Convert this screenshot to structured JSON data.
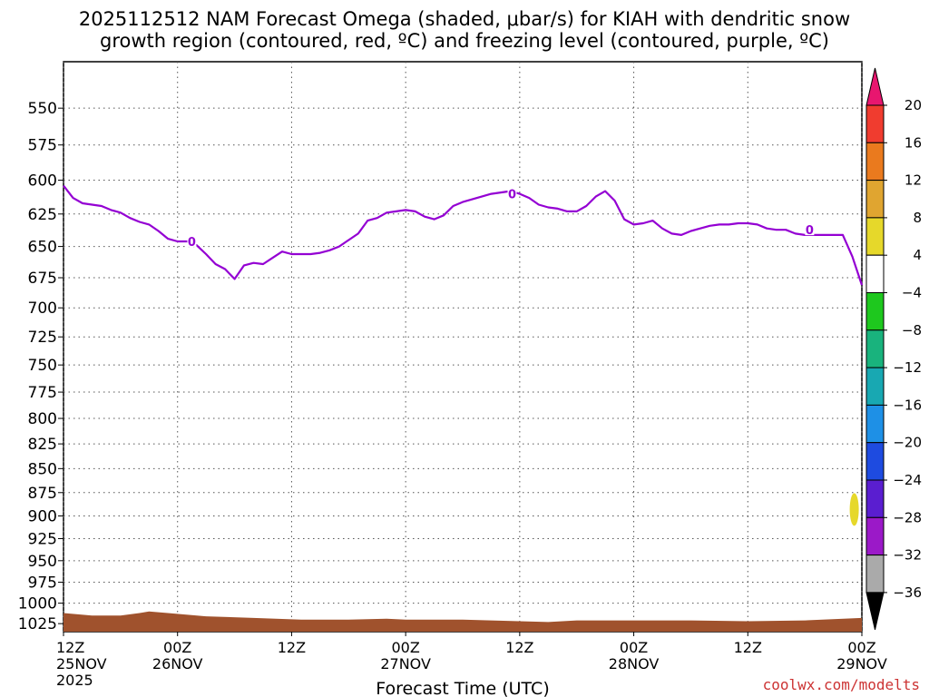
{
  "title": {
    "line1": "2025112512 NAM Forecast Omega (shaded, μbar/s) for KIAH with dendritic snow",
    "line2": "growth region (contoured, red, ºC) and freezing level (contoured, purple, ºC)"
  },
  "credit": "coolwx.com/modelts",
  "colors": {
    "freezing_level": "#9400d3",
    "terrain": "#a0522d",
    "grid": "#555555",
    "omega_positive_blob": "#e6d82a"
  },
  "chart_data": {
    "type": "time-height",
    "xlabel": "Forecast Time (UTC)",
    "x_ticks": [
      {
        "hour": 0,
        "label": "12Z",
        "sub": "25NOV",
        "sub2": "2025"
      },
      {
        "hour": 12,
        "label": "00Z",
        "sub": "26NOV",
        "sub2": ""
      },
      {
        "hour": 24,
        "label": "12Z",
        "sub": "",
        "sub2": ""
      },
      {
        "hour": 36,
        "label": "00Z",
        "sub": "27NOV",
        "sub2": ""
      },
      {
        "hour": 48,
        "label": "12Z",
        "sub": "",
        "sub2": ""
      },
      {
        "hour": 60,
        "label": "00Z",
        "sub": "28NOV",
        "sub2": ""
      },
      {
        "hour": 72,
        "label": "12Z",
        "sub": "",
        "sub2": ""
      },
      {
        "hour": 84,
        "label": "00Z",
        "sub": "29NOV",
        "sub2": ""
      }
    ],
    "xlim": [
      0,
      84
    ],
    "y_ticks": [
      550,
      575,
      600,
      625,
      650,
      675,
      700,
      725,
      750,
      775,
      800,
      825,
      850,
      875,
      900,
      925,
      950,
      975,
      1000,
      1025
    ],
    "ylim_hpa": [
      1035,
      520
    ],
    "y_scale": "log-pressure",
    "grid": true,
    "freezing_level_label": "0",
    "freezing_level_hpa": [
      [
        0,
        604
      ],
      [
        1,
        613
      ],
      [
        2,
        617
      ],
      [
        3,
        618
      ],
      [
        4,
        619
      ],
      [
        5,
        622
      ],
      [
        6,
        624
      ],
      [
        7,
        628
      ],
      [
        8,
        631
      ],
      [
        9,
        633
      ],
      [
        10,
        638
      ],
      [
        11,
        644
      ],
      [
        12,
        646
      ],
      [
        13,
        646
      ],
      [
        14,
        649
      ],
      [
        15,
        656
      ],
      [
        16,
        664
      ],
      [
        17,
        668
      ],
      [
        18,
        676
      ],
      [
        19,
        665
      ],
      [
        20,
        663
      ],
      [
        21,
        664
      ],
      [
        22,
        659
      ],
      [
        23,
        654
      ],
      [
        24,
        656
      ],
      [
        25,
        656
      ],
      [
        26,
        656
      ],
      [
        27,
        655
      ],
      [
        28,
        653
      ],
      [
        29,
        650
      ],
      [
        30,
        645
      ],
      [
        31,
        640
      ],
      [
        32,
        630
      ],
      [
        33,
        628
      ],
      [
        34,
        624
      ],
      [
        35,
        623
      ],
      [
        36,
        622
      ],
      [
        37,
        623
      ],
      [
        38,
        627
      ],
      [
        39,
        629
      ],
      [
        40,
        626
      ],
      [
        41,
        619
      ],
      [
        42,
        616
      ],
      [
        43,
        614
      ],
      [
        44,
        612
      ],
      [
        45,
        610
      ],
      [
        46,
        609
      ],
      [
        47,
        608
      ],
      [
        48,
        610
      ],
      [
        49,
        613
      ],
      [
        50,
        618
      ],
      [
        51,
        620
      ],
      [
        52,
        621
      ],
      [
        53,
        623
      ],
      [
        54,
        623
      ],
      [
        55,
        619
      ],
      [
        56,
        612
      ],
      [
        57,
        608
      ],
      [
        58,
        615
      ],
      [
        59,
        629
      ],
      [
        60,
        633
      ],
      [
        61,
        632
      ],
      [
        62,
        630
      ],
      [
        63,
        636
      ],
      [
        64,
        640
      ],
      [
        65,
        641
      ],
      [
        66,
        638
      ],
      [
        67,
        636
      ],
      [
        68,
        634
      ],
      [
        69,
        633
      ],
      [
        70,
        633
      ],
      [
        71,
        632
      ],
      [
        72,
        632
      ],
      [
        73,
        633
      ],
      [
        74,
        636
      ],
      [
        75,
        637
      ],
      [
        76,
        637
      ],
      [
        77,
        640
      ],
      [
        78,
        641
      ],
      [
        79,
        641
      ],
      [
        80,
        641
      ],
      [
        81,
        641
      ],
      [
        82,
        641
      ],
      [
        83,
        658
      ],
      [
        84,
        681
      ]
    ],
    "terrain_top_hpa": [
      [
        0,
        1012
      ],
      [
        3,
        1015
      ],
      [
        6,
        1015
      ],
      [
        8,
        1012
      ],
      [
        9,
        1010
      ],
      [
        11,
        1012
      ],
      [
        15,
        1016
      ],
      [
        20,
        1018
      ],
      [
        25,
        1020
      ],
      [
        30,
        1020
      ],
      [
        34,
        1019
      ],
      [
        36,
        1020
      ],
      [
        42,
        1020
      ],
      [
        48,
        1022
      ],
      [
        51,
        1023
      ],
      [
        54,
        1021
      ],
      [
        60,
        1021
      ],
      [
        66,
        1021
      ],
      [
        72,
        1022
      ],
      [
        78,
        1021
      ],
      [
        84,
        1018
      ]
    ],
    "colorbar": {
      "labels": [
        "20",
        "16",
        "12",
        "8",
        "4",
        "−4",
        "−8",
        "−12",
        "−16",
        "−20",
        "−24",
        "−28",
        "−32",
        "−36"
      ],
      "colors": [
        "#e8166f",
        "#f03c2f",
        "#ea7a1e",
        "#e0a530",
        "#e6d82a",
        "#ffffff",
        "#1ec81e",
        "#19b37d",
        "#18a8b2",
        "#1e90e6",
        "#1e4be0",
        "#5a1ed0",
        "#9b19c8",
        "#aaaaaa",
        "#000000"
      ]
    }
  }
}
